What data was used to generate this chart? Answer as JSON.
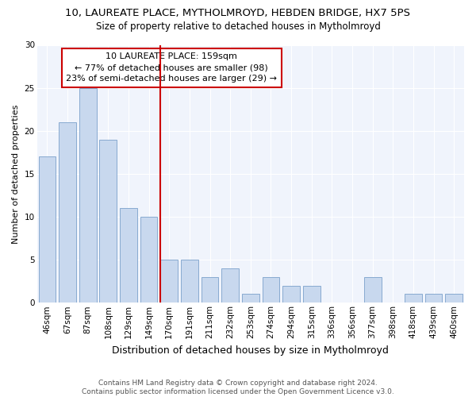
{
  "title": "10, LAUREATE PLACE, MYTHOLMROYD, HEBDEN BRIDGE, HX7 5PS",
  "subtitle": "Size of property relative to detached houses in Mytholmroyd",
  "xlabel": "Distribution of detached houses by size in Mytholmroyd",
  "ylabel": "Number of detached properties",
  "footnote": "Contains HM Land Registry data © Crown copyright and database right 2024.\nContains public sector information licensed under the Open Government Licence v3.0.",
  "categories": [
    "46sqm",
    "67sqm",
    "87sqm",
    "108sqm",
    "129sqm",
    "149sqm",
    "170sqm",
    "191sqm",
    "211sqm",
    "232sqm",
    "253sqm",
    "274sqm",
    "294sqm",
    "315sqm",
    "336sqm",
    "356sqm",
    "377sqm",
    "398sqm",
    "418sqm",
    "439sqm",
    "460sqm"
  ],
  "values": [
    17,
    21,
    25,
    19,
    11,
    10,
    5,
    5,
    3,
    4,
    1,
    3,
    2,
    2,
    0,
    0,
    3,
    0,
    1,
    1,
    1
  ],
  "bar_color": "#c8d8ee",
  "bar_edge_color": "#88aad0",
  "red_line_index": 6,
  "property_label": "10 LAUREATE PLACE: 159sqm",
  "annotation_line1": "← 77% of detached houses are smaller (98)",
  "annotation_line2": "23% of semi-detached houses are larger (29) →",
  "red_color": "#cc0000",
  "ylim": [
    0,
    30
  ],
  "yticks": [
    0,
    5,
    10,
    15,
    20,
    25,
    30
  ],
  "bg_color": "#ffffff",
  "plot_bg_color": "#f0f4fc",
  "grid_color": "#ffffff",
  "title_fontsize": 9.5,
  "subtitle_fontsize": 8.5,
  "ylabel_fontsize": 8,
  "xlabel_fontsize": 9,
  "tick_fontsize": 7.5,
  "annot_fontsize": 8,
  "footnote_fontsize": 6.5
}
